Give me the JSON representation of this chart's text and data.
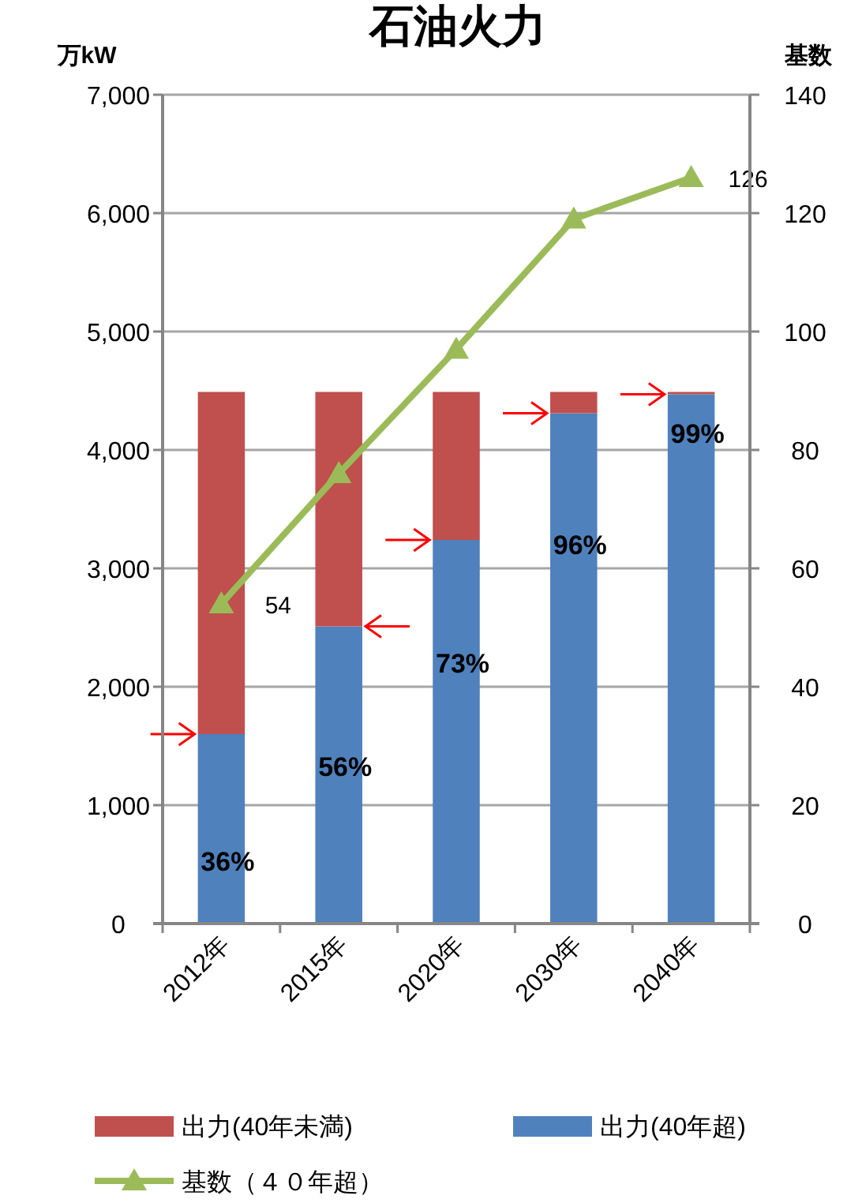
{
  "chart_data": {
    "type": "bar",
    "title": "石油火力",
    "ylabel": "万kW",
    "y2label": "基数",
    "categories": [
      "2012年",
      "2015年",
      "2020年",
      "2030年",
      "2040年"
    ],
    "stacked": true,
    "series": [
      {
        "name": "出力(40年超)",
        "color": "#4f81bd",
        "values": [
          1600,
          2510,
          3240,
          4310,
          4470
        ]
      },
      {
        "name": "出力(40年未満)",
        "color": "#c0504d",
        "values": [
          2890,
          1980,
          1250,
          180,
          20
        ]
      },
      {
        "name": "基数（４０年超）",
        "type": "line",
        "axis": "y2",
        "color": "#9bbb59",
        "marker": "triangle",
        "values": [
          54,
          76,
          97,
          119,
          126
        ],
        "value_labels": [
          "54",
          null,
          null,
          null,
          "126"
        ]
      }
    ],
    "ylim": [
      0,
      7000
    ],
    "yticks": [
      {
        "value": 0,
        "label": "0"
      },
      {
        "value": 1000,
        "label": "1,000"
      },
      {
        "value": 2000,
        "label": "2,000"
      },
      {
        "value": 3000,
        "label": "3,000"
      },
      {
        "value": 4000,
        "label": "4,000"
      },
      {
        "value": 5000,
        "label": "5,000"
      },
      {
        "value": 6000,
        "label": "6,000"
      },
      {
        "value": 7000,
        "label": "7,000"
      }
    ],
    "y2lim": [
      0,
      140
    ],
    "y2ticks": [
      0,
      20,
      40,
      60,
      80,
      100,
      120,
      140
    ],
    "annotations": [
      {
        "text": "36%",
        "x": "2012年",
        "y": 530
      },
      {
        "text": "56%",
        "x": "2015年",
        "y": 1330
      },
      {
        "text": "73%",
        "x": "2020年",
        "y": 2200
      },
      {
        "text": "96%",
        "x": "2030年",
        "y": 3200
      },
      {
        "text": "99%",
        "x": "2040年",
        "y": 4140
      }
    ],
    "grid": "y",
    "legend": "bottom"
  }
}
